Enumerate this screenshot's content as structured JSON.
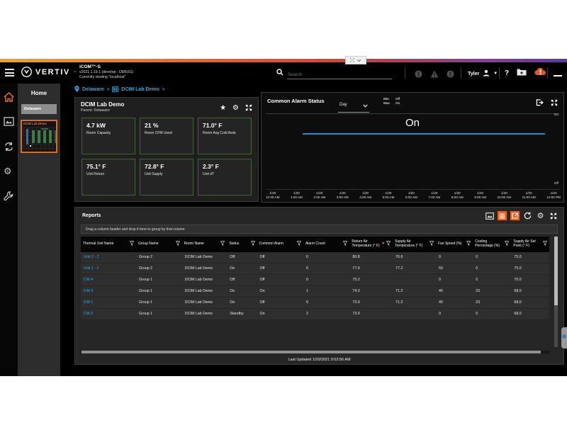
{
  "header": {
    "brand": "VERTIV",
    "brand_tm": "™",
    "app_title": "iCOM™-S",
    "version": "v2021.1.19.1 (develop - DEBUG)",
    "viewing": "Currently viewing \"localhost\"",
    "search_placeholder": "Search",
    "user_name": "Tyler",
    "help_label": "?"
  },
  "breadcrumb": {
    "items": [
      "Delaware",
      "DCIM Lab Demo"
    ],
    "separator": ">"
  },
  "sidebar": {
    "rail_icons": [
      "home-icon",
      "slideshow-icon",
      "sync-icon",
      "gear-icon",
      "wrench-icon"
    ],
    "panel_title": "Home",
    "parent_item": "Delaware",
    "map_item": "DCIM Lab Demo"
  },
  "room_panel": {
    "title": "DCIM Lab Demo",
    "subtitle": "Parent: Delaware",
    "tiles": [
      {
        "value": "4.7 kW",
        "label": "Room Capacity"
      },
      {
        "value": "21 %",
        "label": "Room CFM Used"
      },
      {
        "value": "71.0° F",
        "label": "Room Avg Cold Aisle"
      },
      {
        "value": "75.1° F",
        "label": "Unit Return"
      },
      {
        "value": "72.8° F",
        "label": "Unit Supply"
      },
      {
        "value": "2.3° F",
        "label": "Unit dT"
      }
    ]
  },
  "alarm_panel": {
    "title": "Common Alarm Status",
    "range_selected": "Day",
    "min_label": "Min",
    "min_value": "Off",
    "max_label": "Max",
    "max_value": "On",
    "current_label": "On",
    "axis_top": "On",
    "axis_bottom": "Off"
  },
  "chart_data": {
    "type": "line",
    "title": "Common Alarm Status",
    "x_ticks": [
      {
        "date": "1/20",
        "time": "12:00 AM"
      },
      {
        "date": "1/20",
        "time": "1:00 AM"
      },
      {
        "date": "1/20",
        "time": "2:00 AM"
      },
      {
        "date": "1/20",
        "time": "3:00 AM"
      },
      {
        "date": "1/20",
        "time": "4:00 AM"
      },
      {
        "date": "1/20",
        "time": "5:00 AM"
      },
      {
        "date": "1/20",
        "time": "6:00 AM"
      },
      {
        "date": "1/20",
        "time": "7:00 AM"
      },
      {
        "date": "1/20",
        "time": "8:00 AM"
      },
      {
        "date": "1/20",
        "time": "9:00 AM"
      },
      {
        "date": "1/20",
        "time": "10:00 AM"
      },
      {
        "date": "1/20",
        "time": "11:00 AM"
      },
      {
        "date": "1/20",
        "time": "12:00 PM"
      }
    ],
    "series": [
      {
        "name": "Common Alarm Status",
        "values": [
          "On",
          "On",
          "On",
          "On",
          "On",
          "On",
          "On",
          "On",
          "On",
          "On",
          "On",
          "On",
          "On"
        ]
      }
    ],
    "y_categories": [
      "Off",
      "On"
    ],
    "range": "Day",
    "min": "Off",
    "max": "On",
    "line_color": "#1e8fd2",
    "grid": false,
    "legend": "none"
  },
  "reports": {
    "title": "Reports",
    "drag_hint": "Drag a column header and drop it here to group by that column",
    "toolbar_icons": [
      "chart-view-icon",
      "list-view-icon",
      "export-report-icon",
      "refresh-icon",
      "settings-icon",
      "expand-icon"
    ],
    "columns": [
      "Thermal Unit Name",
      "Group Name",
      "Room Name",
      "Status",
      "Common Alarm",
      "Alarm Count",
      "Return Air Temperature (° F)",
      "Supply Air Temperature (° F)",
      "Fan Speed (%)",
      "Cooling Percentage (%)",
      "Supply Air Set Point (° F)"
    ],
    "sort_column_index": 6,
    "sort_direction": "desc",
    "rows": [
      [
        "Unit 2 - 2",
        "Group 2",
        "DCIM Lab Demo",
        "Off",
        "Off",
        "0",
        "80.8",
        "76.6",
        "0",
        "0",
        "75.0"
      ],
      [
        "Unit 1 - 2",
        "Group 2",
        "DCIM Lab Demo",
        "On",
        "Off",
        "0",
        "77.9",
        "77.2",
        "50",
        "0",
        "75.0"
      ],
      [
        "CW 4",
        "Group 1",
        "DCIM Lab Demo",
        "Off",
        "Off",
        "0",
        "75.2",
        "",
        "0",
        "0",
        "70.0"
      ],
      [
        "CW 3",
        "Group 1",
        "DCIM Lab Demo",
        "On",
        "On",
        "1",
        "74.3",
        "71.2",
        "40",
        "23",
        "68.0"
      ],
      [
        "CW 1",
        "Group 1",
        "DCIM Lab Demo",
        "On",
        "Off",
        "0",
        "73.9",
        "71.2",
        "40",
        "23",
        "68.0"
      ],
      [
        "CW 2",
        "Group 1",
        "DCIM Lab Demo",
        "Standby",
        "On",
        "2",
        "73.9",
        "",
        "0",
        "0",
        "68.0"
      ]
    ],
    "footer": "Last Updated 1/20/2021 9:52:56 AM"
  },
  "colors": {
    "accent_orange": "#f26722",
    "link_blue": "#2ea9e0",
    "chart_line": "#1e8fd2",
    "tile_border": "#44613b",
    "alert_cloud": "#e4581f"
  }
}
